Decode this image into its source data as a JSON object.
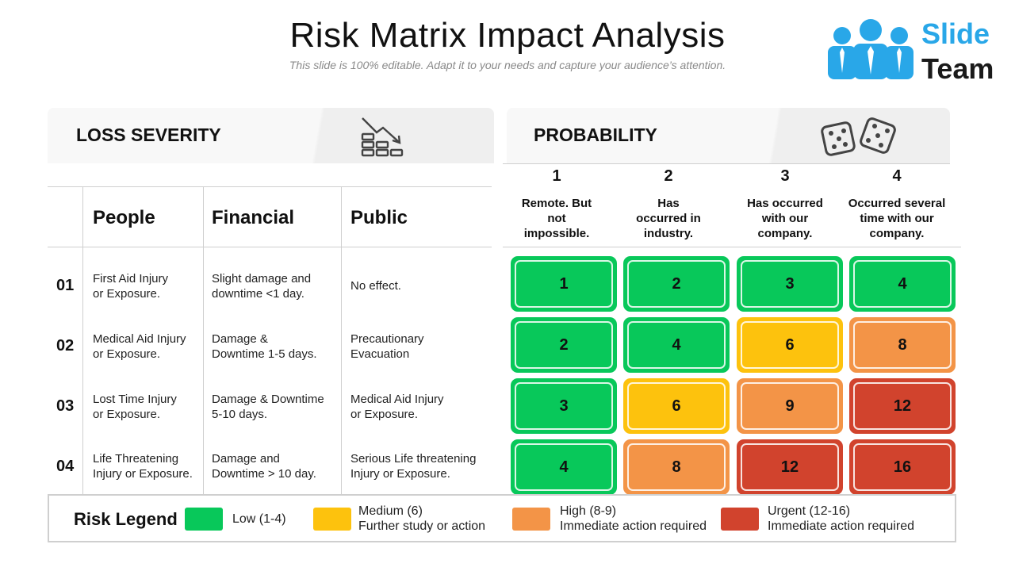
{
  "title": "Risk Matrix Impact Analysis",
  "subtitle": "This slide is 100% editable. Adapt it to your needs and capture your audience’s attention.",
  "logo": {
    "line1": "Slide",
    "line2": "Team"
  },
  "loss_severity": {
    "title": "LOSS SEVERITY",
    "columns": [
      "People",
      "Financial",
      "Public"
    ],
    "rows": [
      {
        "num": "01",
        "people": [
          "First Aid Injury",
          "or Exposure."
        ],
        "financial": [
          "Slight damage and",
          "downtime <1 day."
        ],
        "public": [
          "No effect."
        ]
      },
      {
        "num": "02",
        "people": [
          "Medical Aid Injury",
          "or Exposure."
        ],
        "financial": [
          "Damage &",
          "Downtime 1-5 days."
        ],
        "public": [
          "Precautionary",
          "Evacuation"
        ]
      },
      {
        "num": "03",
        "people": [
          "Lost Time Injury",
          "or Exposure."
        ],
        "financial": [
          "Damage & Downtime",
          "5-10 days."
        ],
        "public": [
          "Medical Aid Injury",
          "or Exposure."
        ]
      },
      {
        "num": "04",
        "people": [
          "Life Threatening",
          "Injury or Exposure."
        ],
        "financial": [
          "Damage and",
          "Downtime > 10 day."
        ],
        "public": [
          "Serious Life threatening",
          "Injury or Exposure."
        ]
      }
    ]
  },
  "probability": {
    "title": "PROBABILITY",
    "levels": [
      {
        "num": "1",
        "desc": [
          "Remote. But",
          "not",
          "impossible."
        ]
      },
      {
        "num": "2",
        "desc": [
          "Has",
          "occurred in",
          "industry."
        ]
      },
      {
        "num": "3",
        "desc": [
          "Has occurred",
          "with our",
          "company."
        ]
      },
      {
        "num": "4",
        "desc": [
          "Occurred several",
          "time with our",
          "company."
        ]
      }
    ]
  },
  "matrix": [
    [
      {
        "value": "1",
        "level": "green"
      },
      {
        "value": "2",
        "level": "green"
      },
      {
        "value": "3",
        "level": "green"
      },
      {
        "value": "4",
        "level": "green"
      }
    ],
    [
      {
        "value": "2",
        "level": "green"
      },
      {
        "value": "4",
        "level": "green"
      },
      {
        "value": "6",
        "level": "yellow"
      },
      {
        "value": "8",
        "level": "orange"
      }
    ],
    [
      {
        "value": "3",
        "level": "green"
      },
      {
        "value": "6",
        "level": "yellow"
      },
      {
        "value": "9",
        "level": "orange"
      },
      {
        "value": "12",
        "level": "red"
      }
    ],
    [
      {
        "value": "4",
        "level": "green"
      },
      {
        "value": "8",
        "level": "orange"
      },
      {
        "value": "12",
        "level": "red"
      },
      {
        "value": "16",
        "level": "red"
      }
    ]
  ],
  "legend": {
    "title": "Risk Legend",
    "items": [
      {
        "level": "green",
        "lines": [
          "Low (1-4)"
        ]
      },
      {
        "level": "yellow",
        "lines": [
          "Medium (6)",
          "Further study or action"
        ]
      },
      {
        "level": "orange",
        "lines": [
          "High (8-9)",
          "Immediate action required"
        ]
      },
      {
        "level": "red",
        "lines": [
          "Urgent (12-16)",
          "Immediate action required"
        ]
      }
    ]
  },
  "colors": {
    "green": "#08c85a",
    "yellow": "#fdc20d",
    "orange": "#f39447",
    "red": "#d1432d",
    "logo_blue": "#29a7e8"
  },
  "icons": {
    "loss_severity": "declining-chart-icon",
    "probability": "dice-icon",
    "logo": "team-people-icon"
  }
}
